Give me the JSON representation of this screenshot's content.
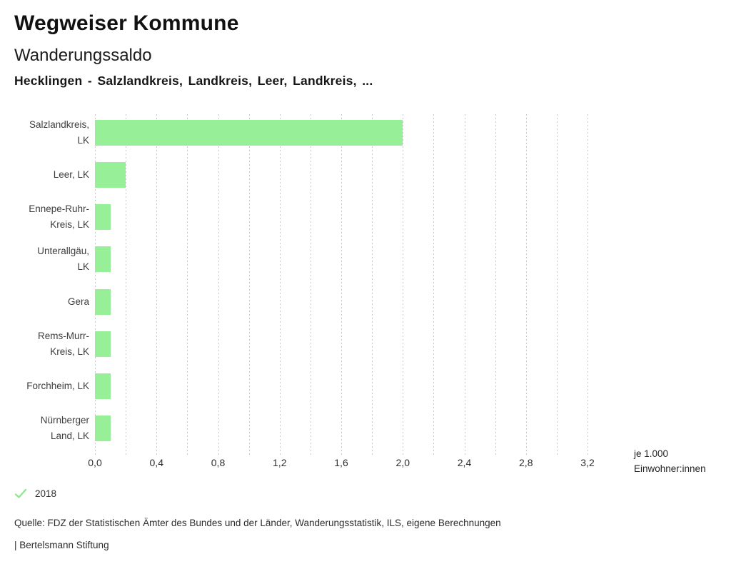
{
  "header": {
    "app_title": "Wegweiser Kommune",
    "chart_title": "Wanderungssaldo",
    "subtitle": "Hecklingen - Salzlandkreis, Landkreis, Leer, Landkreis, ..."
  },
  "chart_data": {
    "type": "bar",
    "orientation": "horizontal",
    "title": "Wanderungssaldo",
    "subtitle": "Hecklingen - Salzlandkreis, Landkreis, Leer, Landkreis, ...",
    "categories": [
      [
        "Salzlandkreis,",
        "LK"
      ],
      [
        "Leer, LK"
      ],
      [
        "Ennepe-Ruhr-",
        "Kreis, LK"
      ],
      [
        "Unterallgäu,",
        "LK"
      ],
      [
        "Gera"
      ],
      [
        "Rems-Murr-",
        "Kreis, LK"
      ],
      [
        "Forchheim, LK"
      ],
      [
        "Nürnberger",
        "Land, LK"
      ]
    ],
    "series": [
      {
        "name": "2018",
        "values": [
          2.0,
          0.2,
          0.1,
          0.1,
          0.1,
          0.1,
          0.1,
          0.1
        ]
      }
    ],
    "xlim": [
      0,
      3.2
    ],
    "gridline_step": 0.2,
    "grid": true,
    "x_ticks": [
      {
        "v": 0.0,
        "label": "0,0"
      },
      {
        "v": 0.4,
        "label": "0,4"
      },
      {
        "v": 0.8,
        "label": "0,8"
      },
      {
        "v": 1.2,
        "label": "1,2"
      },
      {
        "v": 1.6,
        "label": "1,6"
      },
      {
        "v": 2.0,
        "label": "2,0"
      },
      {
        "v": 2.4,
        "label": "2,4"
      },
      {
        "v": 2.8,
        "label": "2,8"
      },
      {
        "v": 3.2,
        "label": "3,2"
      }
    ],
    "x_unit_line1": "je 1.000",
    "x_unit_line2": "Einwohner:innen",
    "bar_color": "#97f097",
    "legend_position": "bottom-left"
  },
  "legend": {
    "items": [
      {
        "label": "2018",
        "icon": "check-icon",
        "color": "#8fe98f",
        "active": true
      }
    ]
  },
  "footer": {
    "source": "Quelle: FDZ der Statistischen Ämter des Bundes und der Länder, Wanderungsstatistik, ILS, eigene Berechnungen",
    "attribution": "| Bertelsmann Stiftung"
  }
}
